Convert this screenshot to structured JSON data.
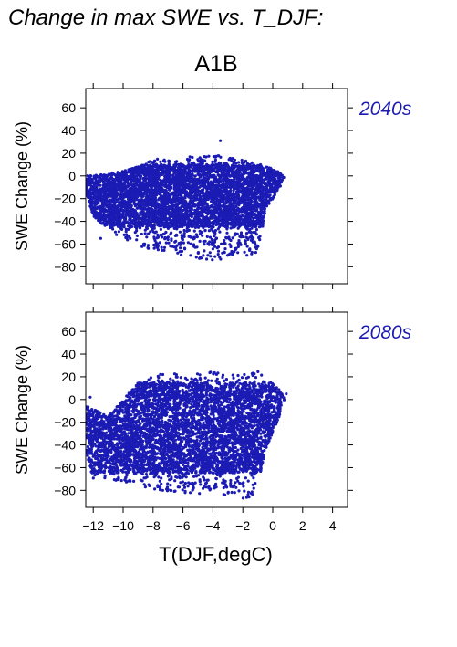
{
  "figure": {
    "title": "Change in max SWE vs. T_DJF:",
    "scenario": "A1B",
    "colors": {
      "points": "#1b1bb4",
      "period_label": "#1b1bb4",
      "axis": "#000000"
    }
  },
  "chart_data": [
    {
      "type": "scatter",
      "panel_label": "2040s",
      "ylabel": "SWE Change (%)",
      "xlabel": "",
      "xlim": [
        -12.5,
        5
      ],
      "ylim": [
        -95,
        77
      ],
      "yticks": [
        60,
        40,
        20,
        0,
        -20,
        -40,
        -60,
        -80
      ],
      "ytick_labels": [
        "60",
        "40",
        "20",
        "0",
        "−20",
        "−40",
        "−60",
        "−80"
      ],
      "xticks": [
        -12,
        -10,
        -8,
        -6,
        -4,
        -2,
        0,
        2,
        4
      ],
      "xtick_labels": [],
      "grid": false,
      "point_cloud": {
        "x_range": [
          -12.5,
          1.0
        ],
        "y_range": [
          -76,
          31
        ],
        "outline": [
          [
            -12.5,
            0
          ],
          [
            -10.5,
            3
          ],
          [
            -9,
            8
          ],
          [
            -8,
            15
          ],
          [
            -6,
            16
          ],
          [
            -5,
            18
          ],
          [
            -3.5,
            18
          ],
          [
            -2,
            14
          ],
          [
            -1,
            12
          ],
          [
            0.5,
            3
          ],
          [
            0.8,
            0
          ],
          [
            0.5,
            -10
          ],
          [
            -0.5,
            -30
          ],
          [
            -0.8,
            -55
          ],
          [
            -1.3,
            -75
          ],
          [
            -2,
            -68
          ],
          [
            -3,
            -72
          ],
          [
            -4,
            -75
          ],
          [
            -6,
            -70
          ],
          [
            -8,
            -65
          ],
          [
            -9.5,
            -60
          ],
          [
            -11,
            -48
          ],
          [
            -12,
            -35
          ],
          [
            -12.5,
            -15
          ]
        ],
        "dense_y_range": [
          -45,
          10
        ]
      }
    },
    {
      "type": "scatter",
      "panel_label": "2080s",
      "ylabel": "SWE Change (%)",
      "xlabel": "T(DJF,degC)",
      "xlim": [
        -12.5,
        5
      ],
      "ylim": [
        -95,
        77
      ],
      "yticks": [
        60,
        40,
        20,
        0,
        -20,
        -40,
        -60,
        -80
      ],
      "ytick_labels": [
        "60",
        "40",
        "20",
        "0",
        "−20",
        "−40",
        "−60",
        "−80"
      ],
      "xticks": [
        -12,
        -10,
        -8,
        -6,
        -4,
        -2,
        0,
        2,
        4
      ],
      "xtick_labels": [
        "−12",
        "−10",
        "−8",
        "−6",
        "−4",
        "−2",
        "0",
        "2",
        "4"
      ],
      "grid": false,
      "point_cloud": {
        "x_range": [
          -12.5,
          1.0
        ],
        "y_range": [
          -91,
          27
        ],
        "outline": [
          [
            -12.5,
            -5
          ],
          [
            -11,
            -15
          ],
          [
            -10,
            0
          ],
          [
            -9,
            15
          ],
          [
            -8,
            22
          ],
          [
            -6,
            26
          ],
          [
            -4,
            24
          ],
          [
            -3,
            22
          ],
          [
            -2,
            25
          ],
          [
            -1,
            25
          ],
          [
            0.5,
            8
          ],
          [
            0.8,
            0
          ],
          [
            0.3,
            -20
          ],
          [
            -0.5,
            -45
          ],
          [
            -1,
            -80
          ],
          [
            -1.5,
            -90
          ],
          [
            -2.5,
            -85
          ],
          [
            -4,
            -85
          ],
          [
            -6,
            -82
          ],
          [
            -8,
            -80
          ],
          [
            -10,
            -72
          ],
          [
            -12,
            -70
          ],
          [
            -12.5,
            -45
          ]
        ],
        "dense_y_range": [
          -65,
          15
        ]
      }
    }
  ]
}
